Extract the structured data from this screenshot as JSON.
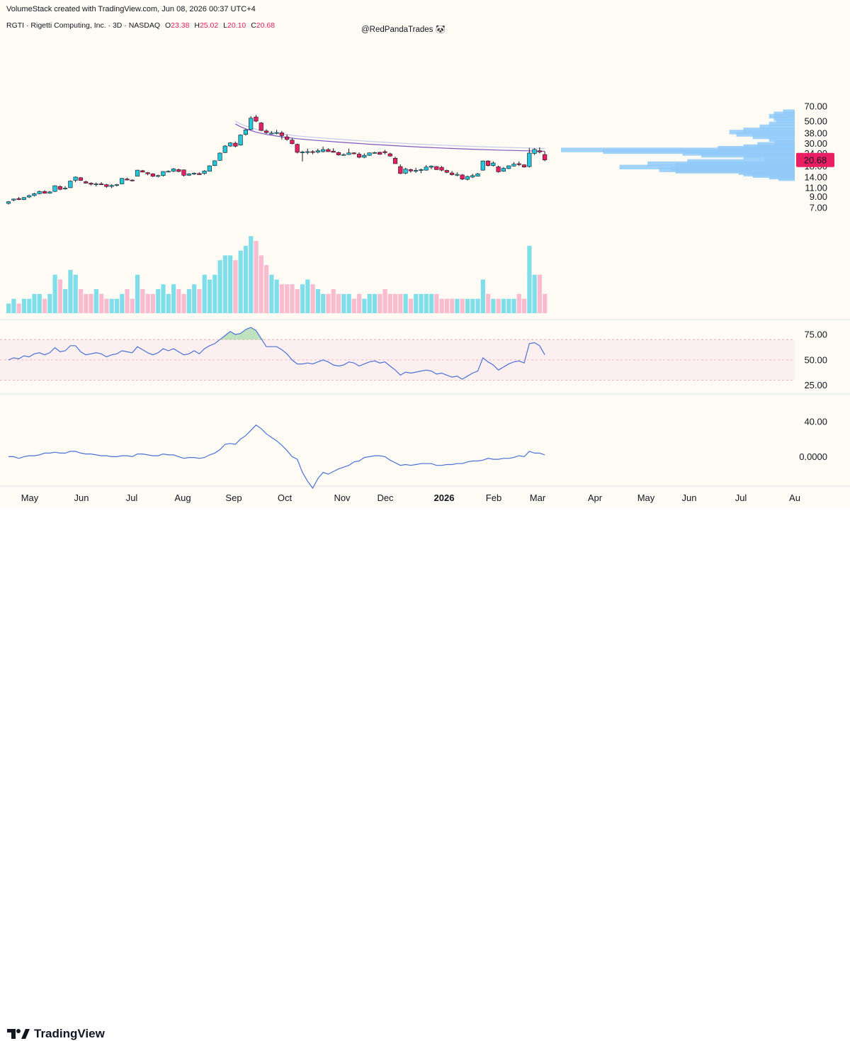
{
  "header": {
    "title": "VolumeStack created with TradingView.com, Jun 08, 2026 00:37 UTC+4"
  },
  "legend": {
    "symbol": "RGTI · Rigetti Computing, Inc. · 3D · NASDAQ",
    "o_label": "O",
    "o_value": "23.38",
    "h_label": "H",
    "h_value": "25.02",
    "l_label": "L",
    "l_value": "20.10",
    "c_label": "C",
    "c_value": "20.68"
  },
  "watermark": "@RedPandaTrades 🐼",
  "brand": "TradingView",
  "colors": {
    "up": "#26c6da",
    "down": "#e91e63",
    "vol_up": "#80deea",
    "vol_down": "#f8bbd0",
    "ma": "#7e57c2",
    "rsi": "#4a72d8",
    "profile": "#90caf9",
    "background": "#fdfbf3"
  },
  "chart_data": [
    {
      "type": "candlestick",
      "title": "",
      "y_scale": "log",
      "y_ticks": [
        "70.00",
        "50.00",
        "38.00",
        "30.00",
        "24.00",
        "18.00",
        "14.00",
        "11.00",
        "9.00",
        "7.00"
      ],
      "x_ticks": [
        "May",
        "Jun",
        "Jul",
        "Aug",
        "Sep",
        "Oct",
        "Nov",
        "Dec",
        "2026",
        "Feb",
        "Mar",
        "Apr",
        "May",
        "Jun",
        "Jul",
        "Au"
      ],
      "last_price": "20.68",
      "candles": [
        [
          7.7,
          8.1,
          7.5,
          8.0
        ],
        [
          8.3,
          8.6,
          8.1,
          8.5
        ],
        [
          8.6,
          8.9,
          8.3,
          8.4
        ],
        [
          8.4,
          8.9,
          8.3,
          8.8
        ],
        [
          8.9,
          9.4,
          8.7,
          9.2
        ],
        [
          9.2,
          9.8,
          9.0,
          9.6
        ],
        [
          9.6,
          10.3,
          9.5,
          10.1
        ],
        [
          10.1,
          10.4,
          9.6,
          9.7
        ],
        [
          9.7,
          10.2,
          9.6,
          10.0
        ],
        [
          10.1,
          11.6,
          10.0,
          11.5
        ],
        [
          11.3,
          11.6,
          10.4,
          10.6
        ],
        [
          10.8,
          11.4,
          10.5,
          10.9
        ],
        [
          11.0,
          13.0,
          10.9,
          12.8
        ],
        [
          13.0,
          14.2,
          12.5,
          14.0
        ],
        [
          13.8,
          14.0,
          12.8,
          13.0
        ],
        [
          12.6,
          12.9,
          12.1,
          12.2
        ],
        [
          12.2,
          12.4,
          11.6,
          11.9
        ],
        [
          11.8,
          12.4,
          11.3,
          12.0
        ],
        [
          12.0,
          12.5,
          11.7,
          11.8
        ],
        [
          11.8,
          12.0,
          11.0,
          11.3
        ],
        [
          11.3,
          11.9,
          10.9,
          11.6
        ],
        [
          11.6,
          12.0,
          11.3,
          11.8
        ],
        [
          12.0,
          13.7,
          11.9,
          13.6
        ],
        [
          13.4,
          13.8,
          13.0,
          13.1
        ],
        [
          13.1,
          13.3,
          12.7,
          12.9
        ],
        [
          14.3,
          16.5,
          14.2,
          16.4
        ],
        [
          16.2,
          16.5,
          15.6,
          15.7
        ],
        [
          15.5,
          15.7,
          14.6,
          15.1
        ],
        [
          15.1,
          15.3,
          14.0,
          14.3
        ],
        [
          14.3,
          14.8,
          13.9,
          14.5
        ],
        [
          14.5,
          16.0,
          14.2,
          15.9
        ],
        [
          15.9,
          16.3,
          15.6,
          16.0
        ],
        [
          16.0,
          17.2,
          15.7,
          16.9
        ],
        [
          16.6,
          17.0,
          15.7,
          15.9
        ],
        [
          16.5,
          16.6,
          14.2,
          14.6
        ],
        [
          14.6,
          15.3,
          14.4,
          15.1
        ],
        [
          15.0,
          15.6,
          14.7,
          15.3
        ],
        [
          15.2,
          15.6,
          14.8,
          14.8
        ],
        [
          15.2,
          16.4,
          14.8,
          16.1
        ],
        [
          16.0,
          18.3,
          15.9,
          18.1
        ],
        [
          18.2,
          20.5,
          18.0,
          20.3
        ],
        [
          20.5,
          24.5,
          20.3,
          24.2
        ],
        [
          24.5,
          29.0,
          24.2,
          28.4
        ],
        [
          28.4,
          31.0,
          27.8,
          30.5
        ],
        [
          30.3,
          31.5,
          27.5,
          28.3
        ],
        [
          29.0,
          37.0,
          28.7,
          36.5
        ],
        [
          37.0,
          42.0,
          36.0,
          41.0
        ],
        [
          41.5,
          56.0,
          41.0,
          53.5
        ],
        [
          55.0,
          57.5,
          49.0,
          50.0
        ],
        [
          48.0,
          49.0,
          40.0,
          40.5
        ],
        [
          40.0,
          41.5,
          37.5,
          38.5
        ],
        [
          38.0,
          40.0,
          37.0,
          38.0
        ],
        [
          38.0,
          41.0,
          37.0,
          38.6
        ],
        [
          38.4,
          40.0,
          33.0,
          36.0
        ],
        [
          35.0,
          37.0,
          32.0,
          33.0
        ],
        [
          32.5,
          34.0,
          29.5,
          30.0
        ],
        [
          29.5,
          30.0,
          24.0,
          24.6
        ],
        [
          24.6,
          25.5,
          20.0,
          24.8
        ],
        [
          24.6,
          26.8,
          23.5,
          25.0
        ],
        [
          25.0,
          25.8,
          23.6,
          24.7
        ],
        [
          24.7,
          26.7,
          24.0,
          25.5
        ],
        [
          25.0,
          28.0,
          24.5,
          26.2
        ],
        [
          26.2,
          27.0,
          24.8,
          25.0
        ],
        [
          25.3,
          27.0,
          24.5,
          24.6
        ],
        [
          24.5,
          25.0,
          22.8,
          23.2
        ],
        [
          23.2,
          24.0,
          22.8,
          23.4
        ],
        [
          23.4,
          26.8,
          23.2,
          24.3
        ],
        [
          24.3,
          24.6,
          23.5,
          23.8
        ],
        [
          23.6,
          24.6,
          21.5,
          22.0
        ],
        [
          22.0,
          24.0,
          21.5,
          23.0
        ],
        [
          23.0,
          24.5,
          22.7,
          24.3
        ],
        [
          24.3,
          25.0,
          23.9,
          24.5
        ],
        [
          24.6,
          25.0,
          23.3,
          23.5
        ],
        [
          25.0,
          26.0,
          23.5,
          24.4
        ],
        [
          23.8,
          24.4,
          22.3,
          22.6
        ],
        [
          21.5,
          22.3,
          19.0,
          19.0
        ],
        [
          17.8,
          18.7,
          15.0,
          15.2
        ],
        [
          15.3,
          17.3,
          15.0,
          16.8
        ],
        [
          16.6,
          17.0,
          15.5,
          16.1
        ],
        [
          16.0,
          17.3,
          15.4,
          16.3
        ],
        [
          16.3,
          17.0,
          15.3,
          16.6
        ],
        [
          16.4,
          18.4,
          16.2,
          17.6
        ],
        [
          17.5,
          18.3,
          16.8,
          18.0
        ],
        [
          17.8,
          18.0,
          16.5,
          16.6
        ],
        [
          17.5,
          18.0,
          16.0,
          16.4
        ],
        [
          16.3,
          16.6,
          15.3,
          15.6
        ],
        [
          15.4,
          16.1,
          14.5,
          14.8
        ],
        [
          14.8,
          15.6,
          14.3,
          14.9
        ],
        [
          14.7,
          15.0,
          13.1,
          13.4
        ],
        [
          13.3,
          14.5,
          13.0,
          14.2
        ],
        [
          14.0,
          15.1,
          13.7,
          14.5
        ],
        [
          14.3,
          15.4,
          14.2,
          15.1
        ],
        [
          16.4,
          20.4,
          16.2,
          20.2
        ],
        [
          20.2,
          20.6,
          17.8,
          18.2
        ],
        [
          18.2,
          20.0,
          17.8,
          19.3
        ],
        [
          17.7,
          18.2,
          15.5,
          15.8
        ],
        [
          16.0,
          17.6,
          15.8,
          17.1
        ],
        [
          17.0,
          18.3,
          16.8,
          18.1
        ],
        [
          18.0,
          19.7,
          17.8,
          18.8
        ],
        [
          19.0,
          20.0,
          18.0,
          18.6
        ],
        [
          18.5,
          18.8,
          17.4,
          17.6
        ],
        [
          17.8,
          27.2,
          17.4,
          24.2
        ],
        [
          24.0,
          27.0,
          23.2,
          26.3
        ],
        [
          25.5,
          27.6,
          24.0,
          24.8
        ],
        [
          23.38,
          25.02,
          20.1,
          20.68
        ]
      ],
      "volume": [
        2,
        3,
        2,
        3,
        3,
        4,
        4,
        3,
        4,
        8,
        7,
        5,
        9,
        8,
        5,
        4,
        4,
        5,
        4,
        3,
        3,
        3,
        4,
        5,
        3,
        8,
        5,
        4,
        4,
        5,
        6,
        4,
        6,
        5,
        4,
        5,
        6,
        5,
        8,
        7,
        8,
        11,
        12,
        12,
        11,
        13,
        14,
        16,
        15,
        12,
        10,
        8,
        7,
        6,
        6,
        6,
        5,
        6,
        7,
        6,
        5,
        4,
        4,
        5,
        4,
        4,
        4,
        3,
        4,
        3,
        4,
        4,
        4,
        5,
        4,
        4,
        4,
        4,
        3,
        4,
        4,
        4,
        4,
        4,
        3,
        3,
        3,
        3,
        3,
        3,
        3,
        3,
        7,
        4,
        3,
        3,
        3,
        3,
        3,
        4,
        3,
        14,
        8,
        8,
        4
      ],
      "ma_line": [
        [
          44,
          47.0
        ],
        [
          45,
          44.0
        ],
        [
          46,
          42.0
        ],
        [
          47,
          40.5
        ],
        [
          48,
          39.0
        ],
        [
          50,
          37.0
        ],
        [
          53,
          35.0
        ],
        [
          56,
          33.5
        ],
        [
          60,
          32.2
        ],
        [
          65,
          30.8
        ],
        [
          70,
          29.6
        ],
        [
          75,
          28.6
        ],
        [
          80,
          27.7
        ],
        [
          85,
          27.0
        ],
        [
          90,
          26.4
        ],
        [
          95,
          25.9
        ],
        [
          100,
          25.5
        ],
        [
          104,
          25.2
        ]
      ],
      "volume_profile": [
        {
          "price": 62,
          "size": 0.05
        },
        {
          "price": 59,
          "size": 0.09
        },
        {
          "price": 56,
          "size": 0.11
        },
        {
          "price": 53,
          "size": 0.09
        },
        {
          "price": 50,
          "size": 0.08
        },
        {
          "price": 47,
          "size": 0.11
        },
        {
          "price": 44,
          "size": 0.15
        },
        {
          "price": 41,
          "size": 0.22
        },
        {
          "price": 39,
          "size": 0.28
        },
        {
          "price": 37,
          "size": 0.25
        },
        {
          "price": 35,
          "size": 0.18
        },
        {
          "price": 33,
          "size": 0.11
        },
        {
          "price": 31,
          "size": 0.09
        },
        {
          "price": 29.5,
          "size": 0.16
        },
        {
          "price": 28,
          "size": 0.22
        },
        {
          "price": 27,
          "size": 0.33
        },
        {
          "price": 26,
          "size": 1.0
        },
        {
          "price": 25,
          "size": 0.82
        },
        {
          "price": 24,
          "size": 0.48
        },
        {
          "price": 23,
          "size": 0.4
        },
        {
          "price": 22,
          "size": 0.22
        },
        {
          "price": 21,
          "size": 0.13
        },
        {
          "price": 20,
          "size": 0.46
        },
        {
          "price": 19,
          "size": 0.63
        },
        {
          "price": 18.3,
          "size": 0.51
        },
        {
          "price": 17.6,
          "size": 0.75
        },
        {
          "price": 17,
          "size": 0.53
        },
        {
          "price": 16.5,
          "size": 0.58
        },
        {
          "price": 16,
          "size": 0.51
        },
        {
          "price": 15.5,
          "size": 0.24
        },
        {
          "price": 15,
          "size": 0.22
        },
        {
          "price": 14.5,
          "size": 0.18
        },
        {
          "price": 14,
          "size": 0.11
        },
        {
          "price": 13.5,
          "size": 0.07
        }
      ]
    },
    {
      "type": "line",
      "title": "",
      "y_ticks": [
        "75.00",
        "50.00",
        "25.00"
      ],
      "ylim": [
        22,
        82
      ],
      "band": [
        30,
        70
      ],
      "values": [
        50,
        52,
        51,
        54,
        53,
        56,
        57,
        55,
        57,
        62,
        58,
        59,
        64,
        64,
        58,
        55,
        56,
        57,
        56,
        53,
        55,
        56,
        59,
        58,
        57,
        63,
        60,
        57,
        55,
        57,
        61,
        59,
        61,
        58,
        55,
        56,
        59,
        56,
        61,
        64,
        66,
        70,
        74,
        78,
        75,
        76,
        80,
        82,
        79,
        71,
        63,
        63,
        63,
        60,
        56,
        50,
        46,
        46,
        47,
        46,
        48,
        50,
        48,
        45,
        44,
        45,
        48,
        47,
        44,
        46,
        48,
        49,
        47,
        48,
        44,
        40,
        35,
        38,
        37,
        38,
        39,
        40,
        39,
        36,
        37,
        35,
        33,
        34,
        31,
        34,
        37,
        39,
        52,
        48,
        45,
        40,
        43,
        46,
        48,
        49,
        47,
        66,
        67,
        64,
        55
      ]
    },
    {
      "type": "line",
      "title": "",
      "y_ticks": [
        "40.00",
        "0.0000"
      ],
      "ylim": [
        -45,
        48
      ],
      "values": [
        0,
        0,
        -2,
        0,
        1,
        1,
        2,
        4,
        4,
        5,
        4,
        4,
        6,
        6,
        4,
        3,
        3,
        2,
        1,
        1,
        0,
        0,
        1,
        1,
        0,
        3,
        3,
        2,
        1,
        1,
        3,
        2,
        2,
        0,
        -2,
        -1,
        -1,
        -2,
        -1,
        2,
        4,
        8,
        14,
        15,
        14,
        20,
        24,
        30,
        36,
        32,
        26,
        22,
        18,
        13,
        7,
        0,
        -3,
        -18,
        -28,
        -36,
        -25,
        -18,
        -20,
        -17,
        -14,
        -12,
        -10,
        -6,
        -5,
        -1,
        0,
        1,
        1,
        0,
        -4,
        -7,
        -10,
        -9,
        -10,
        -9,
        -8,
        -8,
        -8,
        -10,
        -10,
        -9,
        -9,
        -8,
        -8,
        -6,
        -5,
        -5,
        -4,
        -2,
        -3,
        -3,
        -2,
        -2,
        -1,
        1,
        0,
        6,
        4,
        4,
        2
      ]
    }
  ]
}
